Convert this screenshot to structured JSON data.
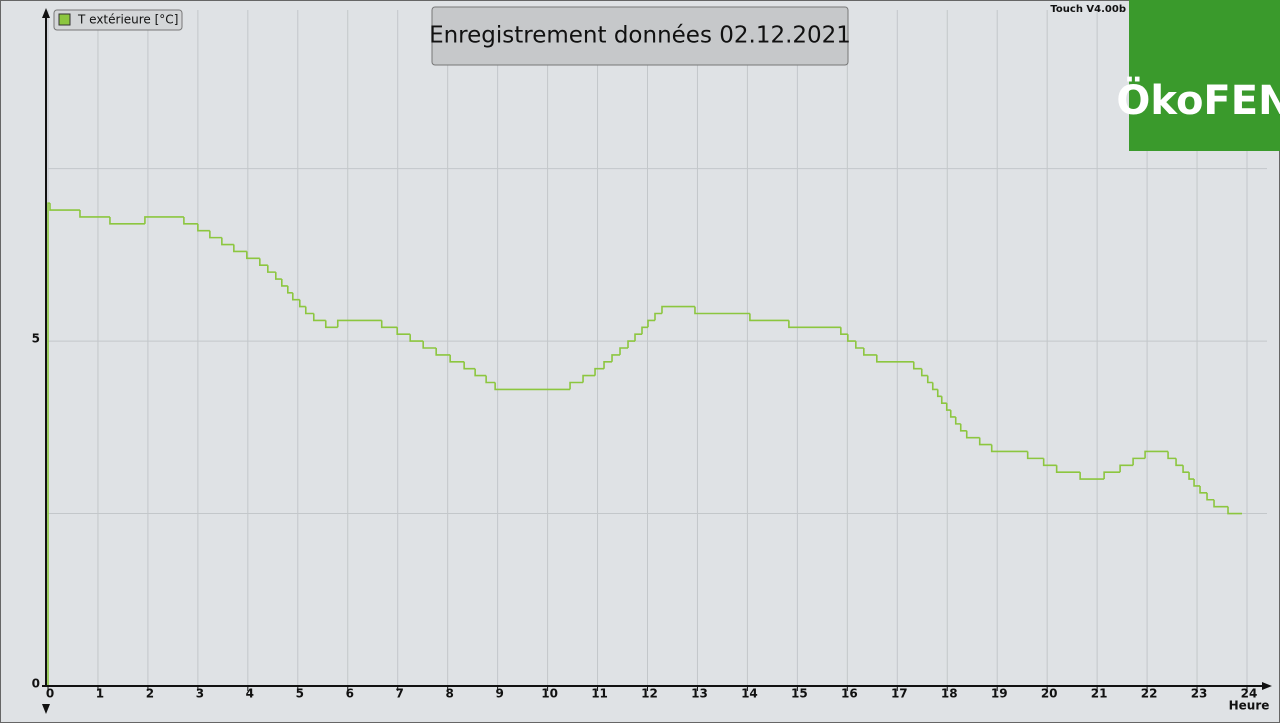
{
  "chart_data": {
    "type": "step-line",
    "title": "Enregistrement données  02.12.2021",
    "version": "Touch V4.00b",
    "logo": "ÖkoFEN",
    "xlabel": "Heure",
    "xlim": [
      0,
      24
    ],
    "xticks": [
      0,
      1,
      2,
      3,
      4,
      5,
      6,
      7,
      8,
      9,
      10,
      11,
      12,
      13,
      14,
      15,
      16,
      17,
      18,
      19,
      20,
      21,
      22,
      23,
      24
    ],
    "ylim": [
      0,
      9.8
    ],
    "yticks": [
      0,
      5
    ],
    "ygrid": [
      2.5,
      5,
      7.5
    ],
    "grid": true,
    "x": [
      0,
      0,
      0.04,
      0.64,
      1.24,
      1.94,
      2.72,
      3.0,
      3.24,
      3.48,
      3.72,
      3.98,
      4.24,
      4.4,
      4.56,
      4.68,
      4.8,
      4.9,
      5.04,
      5.16,
      5.32,
      5.56,
      5.8,
      6.68,
      6.99,
      7.25,
      7.51,
      7.77,
      8.05,
      8.33,
      8.55,
      8.77,
      8.95,
      10.45,
      10.71,
      10.95,
      11.13,
      11.29,
      11.45,
      11.61,
      11.75,
      11.89,
      12.01,
      12.15,
      12.29,
      12.95,
      14.05,
      14.83,
      15.87,
      16.01,
      16.17,
      16.33,
      16.59,
      17.33,
      17.49,
      17.61,
      17.71,
      17.81,
      17.89,
      17.99,
      18.07,
      18.17,
      18.27,
      18.39,
      18.65,
      18.89,
      19.61,
      19.93,
      20.19,
      20.66,
      21.14,
      21.46,
      21.72,
      21.96,
      22.42,
      22.58,
      22.72,
      22.84,
      22.94,
      23.06,
      23.2,
      23.34,
      23.62,
      23.9
    ],
    "series": [
      {
        "name": "T extérieure [°C]",
        "color": "#8cc63f",
        "values": [
          0,
          7.0,
          6.9,
          6.8,
          6.7,
          6.8,
          6.7,
          6.6,
          6.5,
          6.4,
          6.3,
          6.2,
          6.1,
          6.0,
          5.9,
          5.8,
          5.7,
          5.6,
          5.5,
          5.4,
          5.3,
          5.2,
          5.3,
          5.2,
          5.1,
          5.0,
          4.9,
          4.8,
          4.7,
          4.6,
          4.5,
          4.4,
          4.3,
          4.4,
          4.5,
          4.6,
          4.7,
          4.8,
          4.9,
          5.0,
          5.1,
          5.2,
          5.3,
          5.4,
          5.5,
          5.4,
          5.3,
          5.2,
          5.1,
          5.0,
          4.9,
          4.8,
          4.7,
          4.6,
          4.5,
          4.4,
          4.3,
          4.2,
          4.1,
          4.0,
          3.9,
          3.8,
          3.7,
          3.6,
          3.5,
          3.4,
          3.3,
          3.2,
          3.1,
          3.0,
          3.1,
          3.2,
          3.3,
          3.4,
          3.3,
          3.2,
          3.1,
          3.0,
          2.9,
          2.8,
          2.7,
          2.6,
          2.5,
          2.5
        ]
      }
    ]
  }
}
